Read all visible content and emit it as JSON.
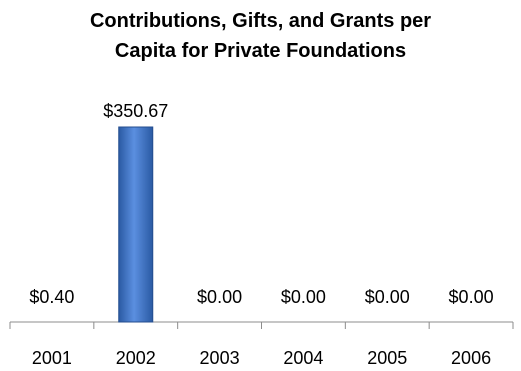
{
  "chart_data": {
    "type": "bar",
    "title": "Contributions, Gifts, and Grants per Capita for Private Foundations",
    "categories": [
      "2001",
      "2002",
      "2003",
      "2004",
      "2005",
      "2006"
    ],
    "values": [
      0.4,
      350.67,
      0.0,
      0.0,
      0.0,
      0.0
    ],
    "data_labels": [
      "$0.40",
      "$350.67",
      "$0.00",
      "$0.00",
      "$0.00",
      "$0.00"
    ],
    "xlabel": "",
    "ylabel": "",
    "ylim": [
      0,
      350.67
    ],
    "grid": false,
    "legend": "none",
    "bar_color": "#3b73c4"
  }
}
